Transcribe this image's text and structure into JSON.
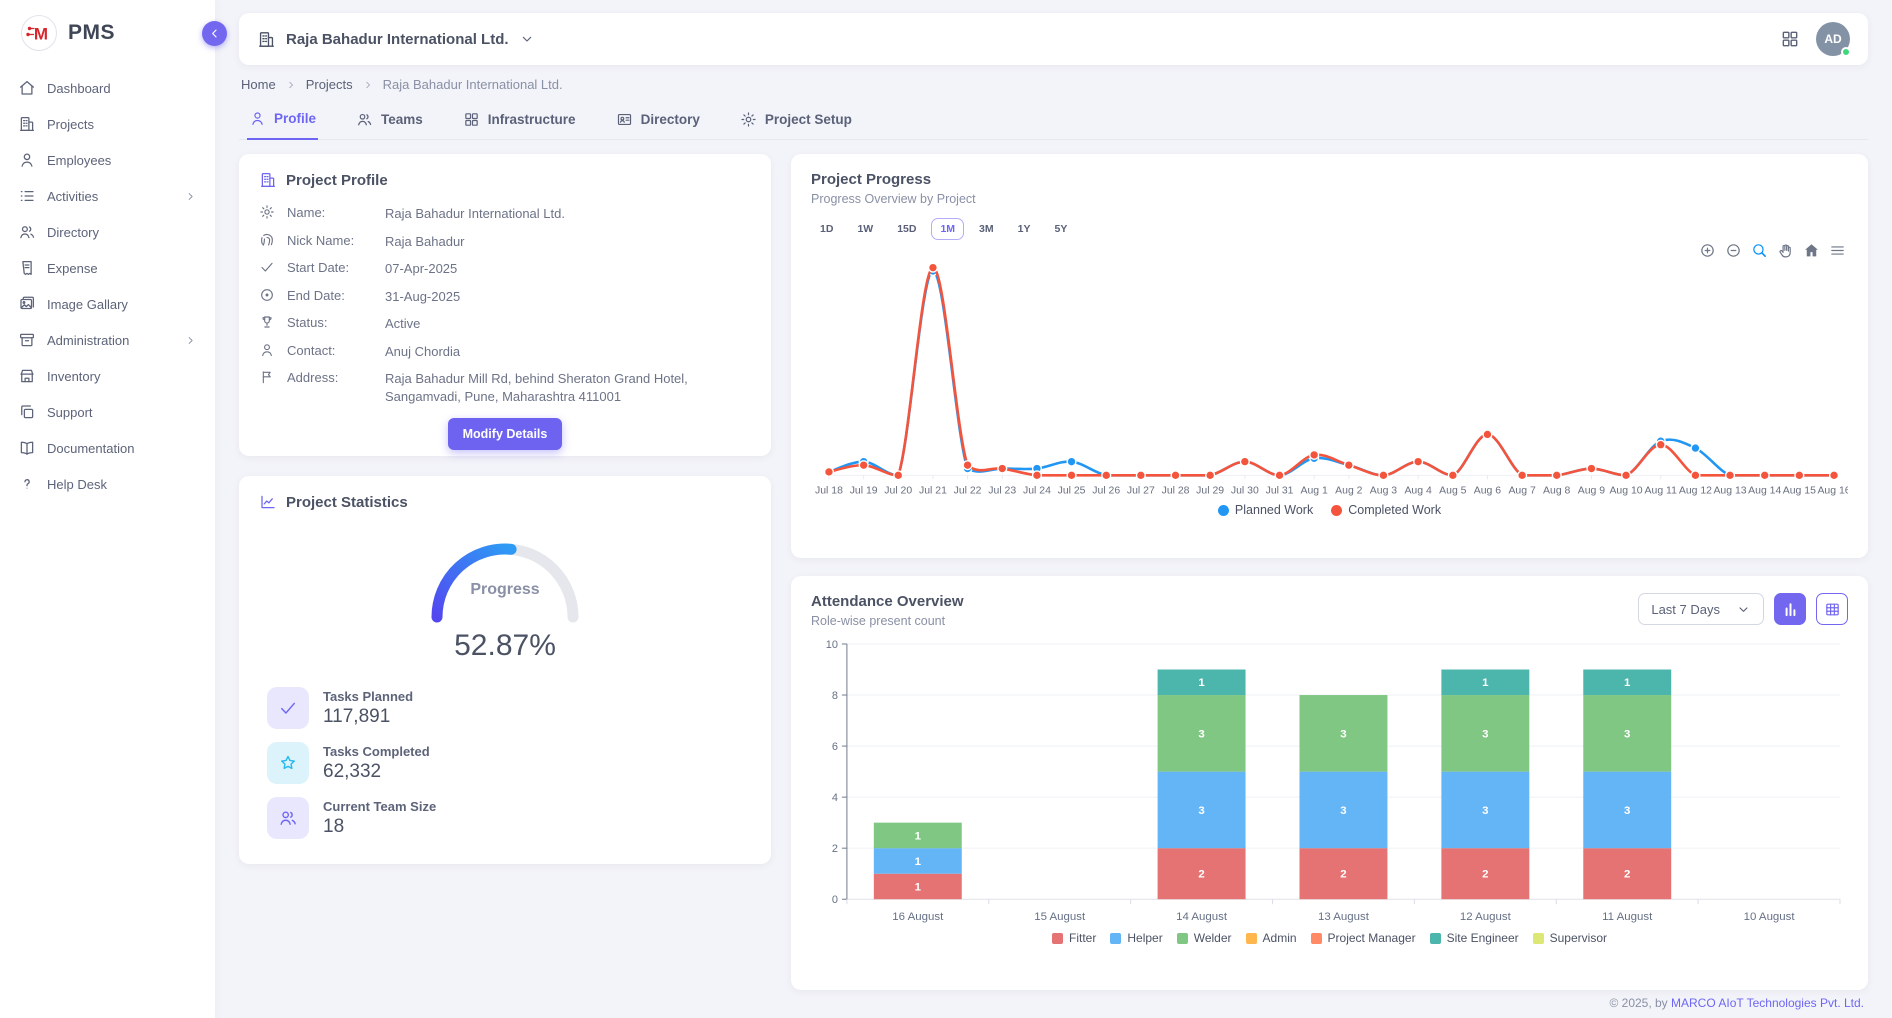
{
  "app": {
    "brand": "PMS"
  },
  "theme": {
    "accent": "#6e66f3",
    "button_purple": "#6e63f1",
    "planned_color": "#2196f3",
    "completed_color": "#f4543c"
  },
  "sidebar": {
    "items": [
      {
        "icon": "home",
        "label": "Dashboard",
        "chevron": false
      },
      {
        "icon": "building",
        "label": "Projects",
        "chevron": false
      },
      {
        "icon": "user",
        "label": "Employees",
        "chevron": false
      },
      {
        "icon": "list",
        "label": "Activities",
        "chevron": true
      },
      {
        "icon": "users",
        "label": "Directory",
        "chevron": false
      },
      {
        "icon": "receipt",
        "label": "Expense",
        "chevron": false
      },
      {
        "icon": "image",
        "label": "Image Gallary",
        "chevron": false
      },
      {
        "icon": "archive",
        "label": "Administration",
        "chevron": true
      },
      {
        "icon": "store",
        "label": "Inventory",
        "chevron": false
      },
      {
        "icon": "copy",
        "label": "Support",
        "chevron": false
      },
      {
        "icon": "book",
        "label": "Documentation",
        "chevron": false
      },
      {
        "icon": "help",
        "label": "Help Desk",
        "chevron": false
      }
    ]
  },
  "header": {
    "company": "Raja Bahadur International Ltd.",
    "avatar_initials": "AD"
  },
  "breadcrumb": {
    "items": [
      "Home",
      "Projects",
      "Raja Bahadur International Ltd."
    ]
  },
  "tabs": [
    {
      "icon": "user",
      "label": "Profile",
      "active": true
    },
    {
      "icon": "users",
      "label": "Teams",
      "active": false
    },
    {
      "icon": "grid",
      "label": "Infrastructure",
      "active": false
    },
    {
      "icon": "card",
      "label": "Directory",
      "active": false
    },
    {
      "icon": "gear",
      "label": "Project Setup",
      "active": false
    }
  ],
  "profile_card": {
    "title": "Project Profile",
    "fields": [
      {
        "icon": "gear",
        "label": "Name:",
        "value": "Raja Bahadur International Ltd."
      },
      {
        "icon": "fingerprint",
        "label": "Nick Name:",
        "value": "Raja Bahadur"
      },
      {
        "icon": "check",
        "label": "Start Date:",
        "value": "07-Apr-2025"
      },
      {
        "icon": "target",
        "label": "End Date:",
        "value": "31-Aug-2025"
      },
      {
        "icon": "trophy",
        "label": "Status:",
        "value": "Active"
      },
      {
        "icon": "user",
        "label": "Contact:",
        "value": "Anuj Chordia"
      },
      {
        "icon": "flag",
        "label": "Address:",
        "value": "Raja Bahadur Mill Rd, behind Sheraton Grand Hotel, Sangamvadi, Pune, Maharashtra 411001"
      }
    ],
    "button_label": "Modify Details"
  },
  "stats_card": {
    "title": "Project Statistics",
    "gauge_label": "Progress",
    "gauge_value": "52.87%",
    "gauge_percent": 52.87,
    "items": [
      {
        "icon": "check",
        "bg": "lavender",
        "label": "Tasks Planned",
        "value": "117,891"
      },
      {
        "icon": "star",
        "bg": "cyan",
        "label": "Tasks Completed",
        "value": "62,332"
      },
      {
        "icon": "users",
        "bg": "lavender",
        "label": "Current Team Size",
        "value": "18"
      }
    ]
  },
  "progress_card": {
    "title": "Project Progress",
    "subtitle": "Progress Overview by Project",
    "ranges": [
      "1D",
      "1W",
      "15D",
      "1M",
      "3M",
      "1Y",
      "5Y"
    ],
    "active_range": "1M",
    "toolbar": [
      "zoomin",
      "zoomout",
      "magnifier",
      "hand",
      "homefill",
      "menu"
    ],
    "toolbar_active": "magnifier"
  },
  "attendance_card": {
    "title": "Attendance Overview",
    "subtitle": "Role-wise present count",
    "filter_value": "Last 7 Days"
  },
  "footer": {
    "prefix": "© 2025, by ",
    "link": "MARCO AIoT Technologies Pvt. Ltd."
  },
  "chart_data": [
    {
      "type": "line",
      "title": "Project Progress",
      "x": [
        "Jul 18",
        "Jul 19",
        "Jul 20",
        "Jul 21",
        "Jul 22",
        "Jul 23",
        "Jul 24",
        "Jul 25",
        "Jul 26",
        "Jul 27",
        "Jul 28",
        "Jul 29",
        "Jul 30",
        "Jul 31",
        "Aug 1",
        "Aug 2",
        "Aug 3",
        "Aug 4",
        "Aug 5",
        "Aug 6",
        "Aug 7",
        "Aug 8",
        "Aug 9",
        "Aug 10",
        "Aug 11",
        "Aug 12",
        "Aug 13",
        "Aug 14",
        "Aug 15",
        "Aug 16"
      ],
      "series": [
        {
          "name": "Planned Work",
          "color": "#2196f3",
          "values": [
            1,
            4,
            0,
            60,
            2,
            2,
            2,
            4,
            0,
            0,
            0,
            0,
            4,
            0,
            5,
            3,
            0,
            4,
            0,
            12,
            0,
            0,
            2,
            0,
            10,
            8,
            0,
            0,
            0,
            0
          ]
        },
        {
          "name": "Completed Work",
          "color": "#f4543c",
          "values": [
            1,
            3,
            0,
            61,
            3,
            2,
            0,
            0,
            0,
            0,
            0,
            0,
            4,
            0,
            6,
            3,
            0,
            4,
            0,
            12,
            0,
            0,
            2,
            0,
            9,
            0,
            0,
            0,
            0,
            0
          ]
        }
      ],
      "ylim": [
        0,
        65
      ],
      "grid": false,
      "legend_position": "bottom"
    },
    {
      "type": "bar",
      "stacked": true,
      "title": "Attendance Overview",
      "categories": [
        "16 August",
        "15 August",
        "14 August",
        "13 August",
        "12 August",
        "11 August",
        "10 August"
      ],
      "series": [
        {
          "name": "Fitter",
          "color": "#e57373",
          "values": [
            1,
            0,
            2,
            2,
            2,
            2,
            0
          ]
        },
        {
          "name": "Helper",
          "color": "#64b5f6",
          "values": [
            1,
            0,
            3,
            3,
            3,
            3,
            0
          ]
        },
        {
          "name": "Welder",
          "color": "#81c784",
          "values": [
            1,
            0,
            3,
            3,
            3,
            3,
            0
          ]
        },
        {
          "name": "Admin",
          "color": "#ffb74d",
          "values": [
            0,
            0,
            0,
            0,
            0,
            0,
            0
          ]
        },
        {
          "name": "Project Manager",
          "color": "#ff8a65",
          "values": [
            0,
            0,
            0,
            0,
            0,
            0,
            0
          ]
        },
        {
          "name": "Site Engineer",
          "color": "#4db6ac",
          "values": [
            0,
            0,
            1,
            0,
            1,
            1,
            0
          ]
        },
        {
          "name": "Supervisor",
          "color": "#dce775",
          "values": [
            0,
            0,
            0,
            0,
            0,
            0,
            0
          ]
        }
      ],
      "ylim": [
        0,
        10
      ],
      "ytick_step": 2,
      "grid": true,
      "legend_position": "bottom"
    }
  ]
}
